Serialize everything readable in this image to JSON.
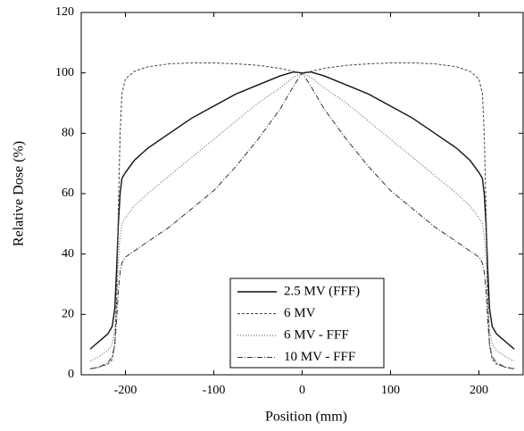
{
  "chart_data": {
    "type": "line",
    "xlabel": "Position (mm)",
    "ylabel": "Relative Dose (%)",
    "x": [
      -240,
      -230,
      -220,
      -215,
      -212,
      -210,
      -208,
      -206,
      -204,
      -200,
      -190,
      -175,
      -150,
      -125,
      -100,
      -75,
      -50,
      -25,
      -10,
      0,
      10,
      25,
      50,
      75,
      100,
      125,
      150,
      175,
      190,
      200,
      204,
      206,
      208,
      210,
      212,
      215,
      220,
      230,
      240
    ],
    "series": [
      {
        "name": "2.5 MV (FFF)",
        "color": "#111111",
        "linestyle": "solid",
        "values": [
          8.5,
          11,
          13.5,
          16,
          22,
          35,
          50,
          60,
          65,
          67,
          71,
          75,
          80,
          85,
          89,
          93,
          96,
          99,
          100.3,
          100,
          100.3,
          99,
          96,
          93,
          89,
          85,
          80,
          75,
          71,
          67,
          65,
          60,
          50,
          35,
          22,
          16,
          13.5,
          11,
          8.5
        ]
      },
      {
        "name": "6 MV",
        "color": "#444444",
        "linestyle": "dashed",
        "values": [
          2,
          2.5,
          3.5,
          5,
          10,
          25,
          55,
          80,
          93,
          98,
          100.5,
          102,
          103,
          103.3,
          103.3,
          103,
          102.5,
          101.5,
          100.5,
          100,
          100.5,
          101.5,
          102.5,
          103,
          103.3,
          103.3,
          103,
          102,
          100.5,
          98,
          93,
          80,
          55,
          25,
          10,
          5,
          3.5,
          2.5,
          2
        ]
      },
      {
        "name": "6 MV - FFF",
        "color": "#555555",
        "linestyle": "dotted",
        "values": [
          4.5,
          6,
          8,
          10,
          15,
          25,
          38,
          46,
          50,
          52,
          56,
          60,
          66,
          72,
          78,
          84,
          90,
          95,
          98.5,
          100,
          98.5,
          95,
          90,
          84,
          78,
          72,
          66,
          60,
          56,
          52,
          50,
          46,
          38,
          25,
          15,
          10,
          8,
          6,
          4.5
        ]
      },
      {
        "name": "10 MV - FFF",
        "color": "#333333",
        "linestyle": "dashdot",
        "values": [
          2,
          2.5,
          4,
          6,
          10,
          18,
          28,
          34,
          37,
          39,
          41,
          44,
          49,
          55,
          61,
          69,
          78,
          88,
          95.5,
          100,
          95.5,
          88,
          78,
          69,
          61,
          55,
          49,
          44,
          41,
          39,
          37,
          34,
          28,
          18,
          10,
          6,
          4,
          2.5,
          2
        ]
      }
    ],
    "xlim": [
      -250,
      250
    ],
    "xticks": [
      -200,
      -100,
      0,
      100,
      200
    ],
    "ylim": [
      0,
      120
    ],
    "yticks": [
      0,
      20,
      40,
      60,
      80,
      100,
      120
    ],
    "legend": "lower center",
    "grid": false
  }
}
